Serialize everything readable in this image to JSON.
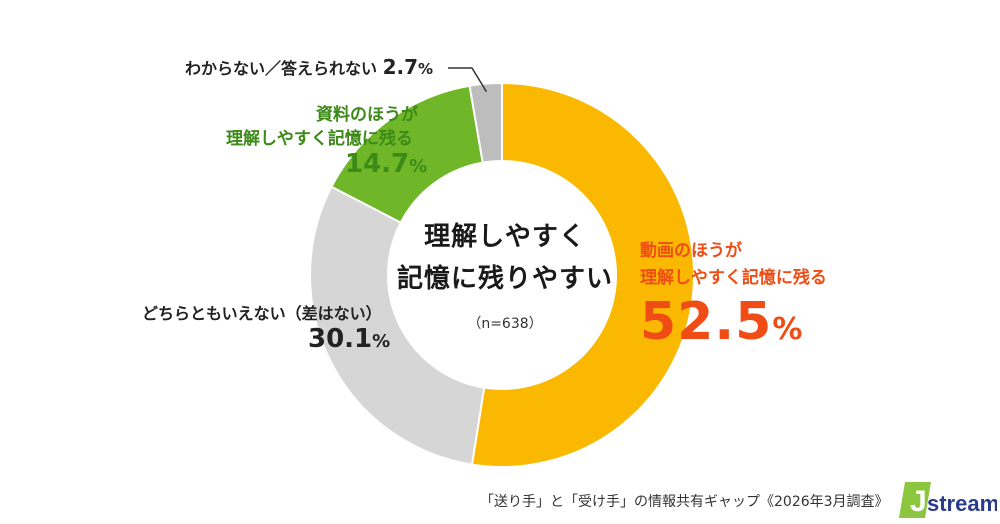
{
  "chart_data": {
    "type": "pie",
    "title": "理解しやすく 記憶に残りやすい",
    "title_lines": [
      "理解しやすく",
      "記憶に残りやすい"
    ],
    "n_label": "（n=638）",
    "slices": [
      {
        "label_lines": [
          "動画のほうが",
          "理解しやすく記憶に残る"
        ],
        "value": 52.5,
        "value_text": "52.5",
        "unit": "%",
        "color": "#fbb800"
      },
      {
        "label_lines": [
          "どちらともいえない（差はない）"
        ],
        "value": 30.1,
        "value_text": "30.1",
        "unit": "%",
        "color": "#d6d6d6"
      },
      {
        "label_lines": [
          "資料のほうが",
          "理解しやすく記憶に残る"
        ],
        "value": 14.7,
        "value_text": "14.7",
        "unit": "%",
        "color": "#6fb728"
      },
      {
        "label_lines": [
          "わからない／答えられない"
        ],
        "value": 2.7,
        "value_text": "2.7",
        "unit": "%",
        "color": "#bdbdbd"
      }
    ]
  },
  "footer": "「送り手」と「受け手」の情報共有ギャップ《2026年3月調査》",
  "logo": {
    "text": "stream",
    "initial": "J",
    "accent": "#8cc63f",
    "color": "#2a3a8c"
  }
}
